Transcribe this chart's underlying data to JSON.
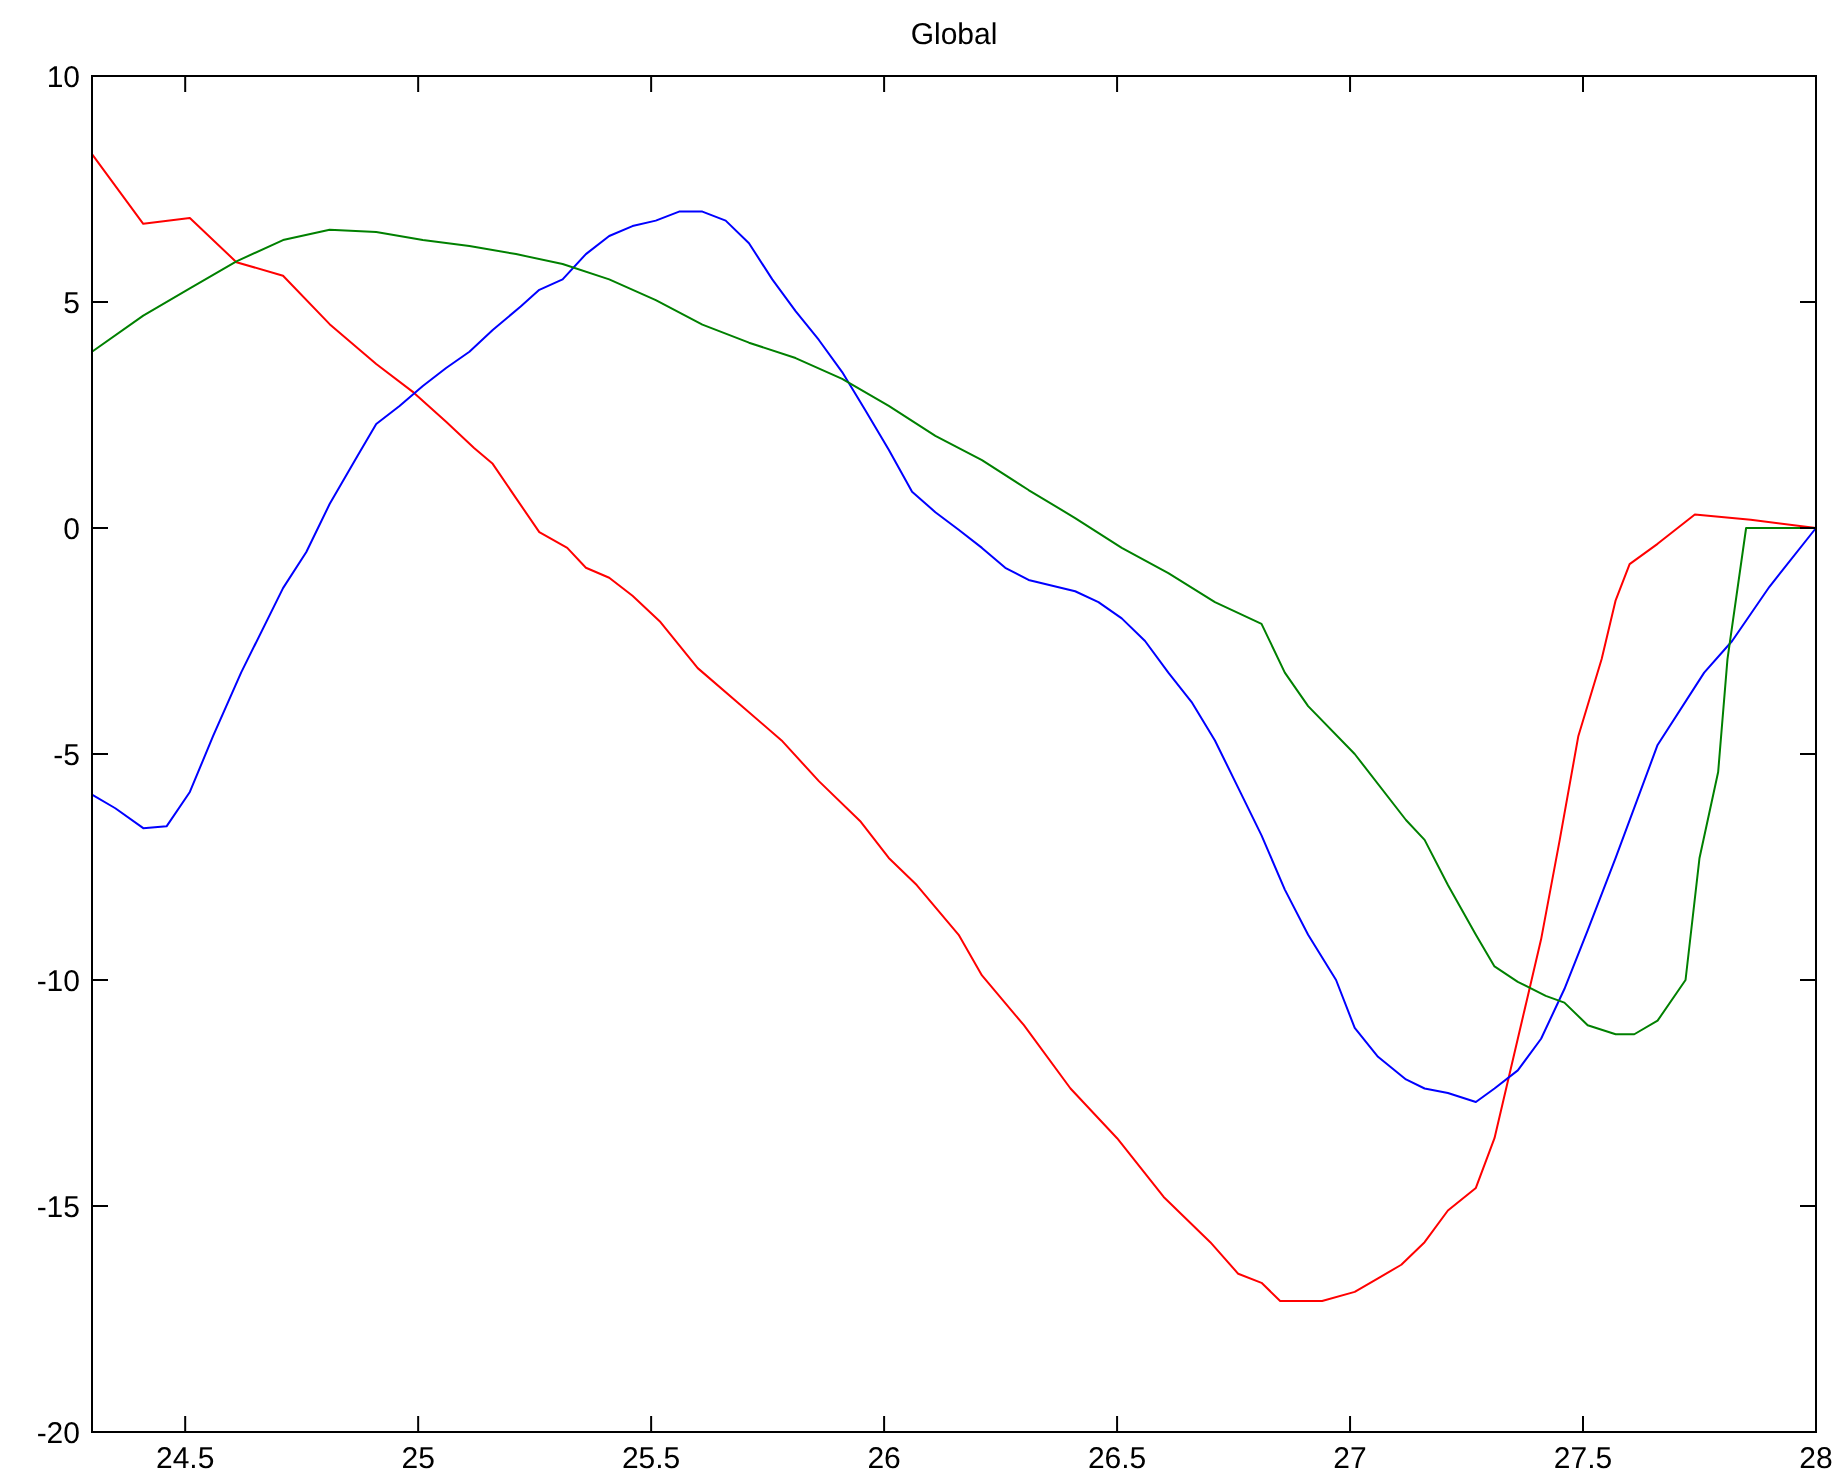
{
  "chart_data": {
    "type": "line",
    "title": "Global",
    "xlim": [
      24.3,
      28
    ],
    "xticks": [
      24.5,
      25,
      25.5,
      26,
      26.5,
      27,
      27.5,
      28
    ],
    "ylim": [
      -20,
      10
    ],
    "yticks": [
      -20,
      -15,
      -10,
      -5,
      0,
      5,
      10
    ],
    "grid": false,
    "line_style": "solid",
    "series": [
      {
        "color": "#ff0000",
        "x": [
          24.3,
          24.41,
          24.51,
          24.61,
          24.71,
          24.81,
          24.91,
          24.99,
          25.06,
          25.12,
          25.16,
          25.21,
          25.26,
          25.32,
          25.36,
          25.41,
          25.46,
          25.52,
          25.6,
          25.69,
          25.78,
          25.86,
          25.95,
          26.01,
          26.07,
          26.16,
          26.21,
          26.3,
          26.4,
          26.5,
          26.6,
          26.7,
          26.76,
          26.81,
          26.85,
          26.94,
          27.01,
          27.06,
          27.11,
          27.16,
          27.21,
          27.27,
          27.31,
          27.36,
          27.41,
          27.45,
          27.49,
          27.54,
          27.57,
          27.6,
          27.66,
          27.74,
          27.86,
          28
        ],
        "values": [
          8.27,
          6.73,
          6.86,
          5.88,
          5.58,
          4.51,
          3.63,
          3.0,
          2.35,
          1.77,
          1.42,
          0.66,
          -0.09,
          -0.44,
          -0.88,
          -1.1,
          -1.5,
          -2.08,
          -3.1,
          -3.9,
          -4.7,
          -5.6,
          -6.5,
          -7.3,
          -7.9,
          -9.0,
          -9.9,
          -11.0,
          -12.4,
          -13.5,
          -14.8,
          -15.8,
          -16.5,
          -16.7,
          -17.1,
          -17.1,
          -16.9,
          -16.6,
          -16.3,
          -15.8,
          -15.1,
          -14.6,
          -13.5,
          -11.3,
          -9.1,
          -6.9,
          -4.6,
          -2.9,
          -1.6,
          -0.8,
          -0.35,
          0.3,
          0.18,
          0
        ]
      },
      {
        "color": "#0000ff",
        "x": [
          24.3,
          24.35,
          24.41,
          24.46,
          24.51,
          24.56,
          24.62,
          24.71,
          24.76,
          24.81,
          24.87,
          24.91,
          24.96,
          25.01,
          25.06,
          25.11,
          25.16,
          25.22,
          25.26,
          25.31,
          25.36,
          25.41,
          25.46,
          25.51,
          25.56,
          25.61,
          25.66,
          25.71,
          25.76,
          25.81,
          25.86,
          25.91,
          25.96,
          26.01,
          26.06,
          26.11,
          26.16,
          26.21,
          26.26,
          26.31,
          26.41,
          26.46,
          26.51,
          26.56,
          26.61,
          26.66,
          26.71,
          26.76,
          26.81,
          26.86,
          26.91,
          26.97,
          27.01,
          27.06,
          27.12,
          27.16,
          27.21,
          27.27,
          27.31,
          27.36,
          27.41,
          27.46,
          27.51,
          27.57,
          27.66,
          27.76,
          27.82,
          27.9,
          28
        ],
        "values": [
          -5.9,
          -6.2,
          -6.64,
          -6.6,
          -5.84,
          -4.6,
          -3.2,
          -1.33,
          -0.53,
          0.53,
          1.6,
          2.3,
          2.7,
          3.14,
          3.54,
          3.9,
          4.38,
          4.9,
          5.27,
          5.5,
          6.06,
          6.46,
          6.68,
          6.8,
          7.0,
          7.0,
          6.8,
          6.3,
          5.5,
          4.8,
          4.16,
          3.45,
          2.6,
          1.73,
          0.8,
          0.35,
          -0.04,
          -0.44,
          -0.88,
          -1.15,
          -1.4,
          -1.64,
          -2.0,
          -2.5,
          -3.2,
          -3.85,
          -4.7,
          -5.75,
          -6.8,
          -8.0,
          -9.0,
          -10.0,
          -11.06,
          -11.7,
          -12.2,
          -12.4,
          -12.5,
          -12.7,
          -12.4,
          -12.0,
          -11.3,
          -10.2,
          -8.9,
          -7.3,
          -4.8,
          -3.2,
          -2.5,
          -1.3,
          0
        ]
      },
      {
        "color": "#008000",
        "x": [
          24.3,
          24.41,
          24.51,
          24.61,
          24.71,
          24.81,
          24.91,
          25.01,
          25.11,
          25.21,
          25.31,
          25.41,
          25.51,
          25.61,
          25.71,
          25.81,
          25.91,
          26.01,
          26.11,
          26.21,
          26.31,
          26.41,
          26.51,
          26.61,
          26.71,
          26.81,
          26.86,
          26.91,
          27.01,
          27.12,
          27.16,
          27.21,
          27.27,
          27.31,
          27.36,
          27.42,
          27.46,
          27.51,
          27.57,
          27.61,
          27.66,
          27.72,
          27.75,
          27.79,
          27.81,
          27.85,
          28
        ],
        "values": [
          3.9,
          4.7,
          5.3,
          5.9,
          6.37,
          6.6,
          6.55,
          6.37,
          6.24,
          6.06,
          5.84,
          5.5,
          5.04,
          4.5,
          4.1,
          3.76,
          3.3,
          2.7,
          2.04,
          1.5,
          0.84,
          0.22,
          -0.44,
          -1.0,
          -1.64,
          -2.12,
          -3.2,
          -3.94,
          -5.0,
          -6.46,
          -6.9,
          -7.9,
          -9.0,
          -9.7,
          -10.04,
          -10.35,
          -10.5,
          -11.0,
          -11.2,
          -11.2,
          -10.9,
          -10.0,
          -7.3,
          -5.4,
          -2.9,
          0,
          0
        ]
      }
    ]
  }
}
